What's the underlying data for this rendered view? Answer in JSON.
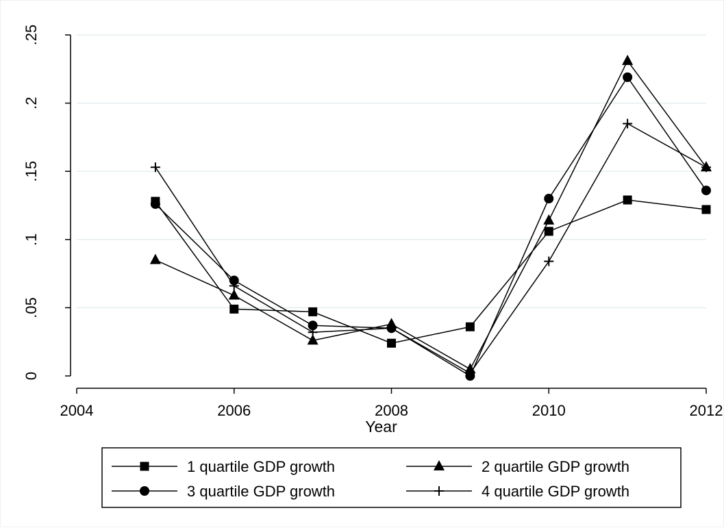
{
  "chart_data": {
    "type": "line",
    "title": "",
    "xlabel": "Year",
    "ylabel": "",
    "xlim": [
      2004,
      2012
    ],
    "ylim": [
      0,
      0.25
    ],
    "x_ticks": [
      2004,
      2006,
      2008,
      2010,
      2012
    ],
    "y_ticks": [
      0,
      0.05,
      0.1,
      0.15,
      0.2,
      0.25
    ],
    "x_tick_labels": [
      "2004",
      "2006",
      "2008",
      "2010",
      "2012"
    ],
    "y_tick_labels": [
      "0",
      ".05",
      ".1",
      ".15",
      ".2",
      ".25"
    ],
    "grid": true,
    "legend_position": "bottom",
    "x": [
      2005,
      2006,
      2007,
      2008,
      2009,
      2010,
      2011,
      2012
    ],
    "series": [
      {
        "name": "1 quartile GDP growth",
        "marker": "square",
        "values": [
          0.128,
          0.049,
          0.047,
          0.024,
          0.036,
          0.106,
          0.129,
          0.122
        ]
      },
      {
        "name": "2 quartile GDP growth",
        "marker": "triangle",
        "values": [
          0.085,
          0.059,
          0.026,
          0.038,
          0.005,
          0.114,
          0.231,
          0.153
        ]
      },
      {
        "name": "3 quartile GDP growth",
        "marker": "circle",
        "values": [
          0.126,
          0.07,
          0.037,
          0.035,
          0.0,
          0.13,
          0.219,
          0.136
        ]
      },
      {
        "name": "4 quartile GDP growth",
        "marker": "plus",
        "values": [
          0.153,
          0.066,
          0.032,
          0.035,
          0.002,
          0.084,
          0.185,
          0.153
        ]
      }
    ]
  }
}
